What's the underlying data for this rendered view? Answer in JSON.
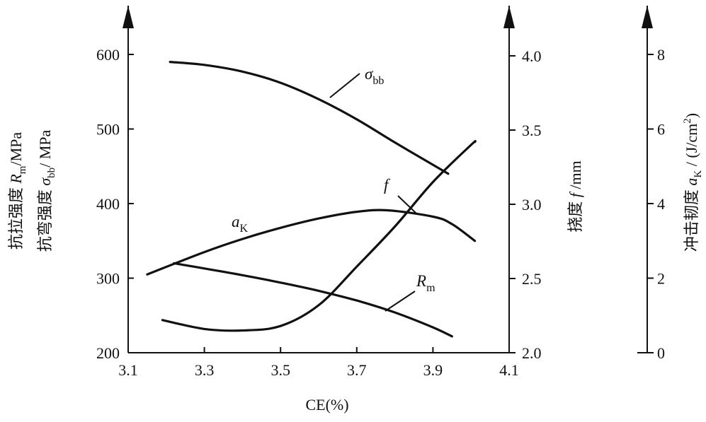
{
  "chart_data": {
    "type": "line",
    "xlabel": "CE(%)",
    "xlim": [
      3.1,
      4.1
    ],
    "x_ticks": [
      "3.1",
      "3.3",
      "3.5",
      "3.7",
      "3.9",
      "4.1"
    ],
    "axes": {
      "left": {
        "ylim": [
          200,
          650
        ],
        "ticks": [
          "200",
          "300",
          "400",
          "500",
          "600"
        ],
        "label_line1": "抗拉强度 R",
        "label_line1_sub": "m",
        "label_line1_unit": "/MPa",
        "label_line2": "抗弯强度 σ",
        "label_line2_sub": "bb",
        "label_line2_unit": "/ MPa"
      },
      "middle": {
        "ylim": [
          2.0,
          4.1
        ],
        "ticks": [
          "2.0",
          "2.5",
          "3.0",
          "3.5",
          "4.0"
        ],
        "label": "挠度 f /mm"
      },
      "right": {
        "ylim": [
          0,
          8.6
        ],
        "ticks": [
          "0",
          "2",
          "4",
          "6",
          "8"
        ],
        "label_main": "冲击韧度 a",
        "label_sub": "K",
        "label_unit": " / (J/cm",
        "label_sup": "2",
        "label_close": ")"
      }
    },
    "series": [
      {
        "name": "σbb",
        "label_main": "σ",
        "label_sub": "bb",
        "axis": "left",
        "x": [
          3.21,
          3.3,
          3.4,
          3.5,
          3.6,
          3.7,
          3.8,
          3.9,
          3.94
        ],
        "y": [
          590,
          586,
          577,
          562,
          540,
          513,
          482,
          452,
          440
        ]
      },
      {
        "name": "Rm",
        "label_main": "R",
        "label_sub": "m",
        "axis": "left",
        "x": [
          3.22,
          3.3,
          3.4,
          3.5,
          3.6,
          3.7,
          3.8,
          3.9,
          3.95
        ],
        "y": [
          320,
          313,
          304,
          294,
          283,
          270,
          254,
          234,
          222
        ]
      },
      {
        "name": "f",
        "label_main": "f",
        "label_sub": "",
        "axis": "middle",
        "x": [
          3.19,
          3.3,
          3.4,
          3.5,
          3.6,
          3.7,
          3.8,
          3.9,
          4.0,
          4.01
        ],
        "y": [
          2.22,
          2.16,
          2.15,
          2.18,
          2.32,
          2.58,
          2.85,
          3.15,
          3.4,
          3.42
        ]
      },
      {
        "name": "aK",
        "label_main": "a",
        "label_sub": "K",
        "axis": "right",
        "x": [
          3.15,
          3.3,
          3.4,
          3.5,
          3.6,
          3.7,
          3.78,
          3.9,
          3.95,
          4.01
        ],
        "y": [
          2.1,
          2.7,
          3.05,
          3.35,
          3.6,
          3.78,
          3.82,
          3.65,
          3.45,
          3.0
        ]
      }
    ]
  }
}
